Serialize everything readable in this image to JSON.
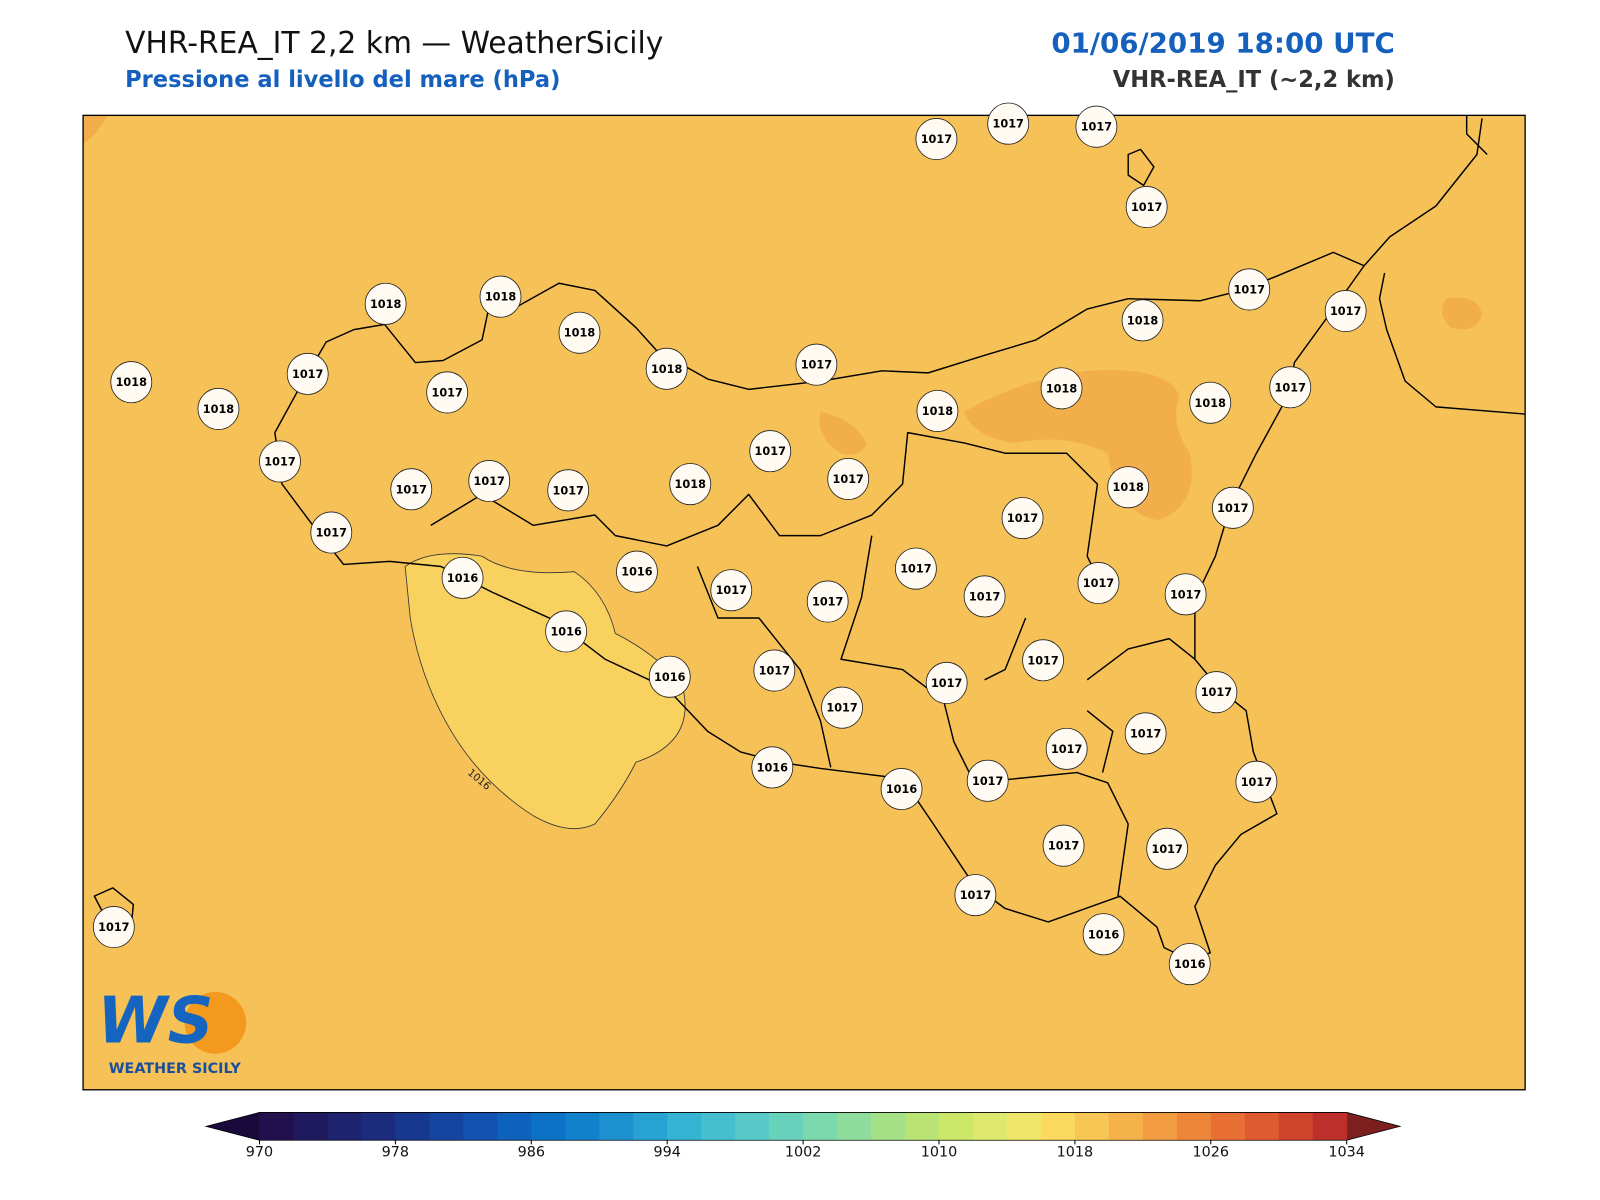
{
  "header": {
    "title": "VHR-REA_IT 2,2 km — WeatherSicily",
    "subtitle": "Pressione al livello del mare (hPa)",
    "datetime": "01/06/2019 18:00 UTC",
    "model": "VHR-REA_IT (~2,2 km)"
  },
  "map": {
    "background_color": "#f6c157",
    "stations": [
      1017,
      1017,
      1017,
      1017,
      1018,
      1018,
      1018,
      1018,
      1017,
      1018,
      1017,
      1017,
      1018,
      1018,
      1017,
      1017,
      1018,
      1018,
      1018,
      1017,
      1017,
      1017,
      1017,
      1017,
      1018,
      1017,
      1017,
      1017,
      1018,
      1017,
      1017,
      1016,
      1016,
      1017,
      1017,
      1017,
      1017,
      1017,
      1017,
      1016,
      1016,
      1017,
      1017,
      1017,
      1017,
      1017,
      1017,
      1017,
      1017,
      1016,
      1016,
      1017,
      1017,
      1017,
      1017,
      1016,
      1016,
      1017
    ],
    "contour": {
      "value": 1016,
      "label": "1016",
      "color": "#f9d15f"
    },
    "colorbar": {
      "bins": [
        970,
        972,
        974,
        976,
        978,
        980,
        982,
        984,
        986,
        988,
        990,
        992,
        994,
        996,
        998,
        1000,
        1002,
        1004,
        1006,
        1008,
        1010,
        1012,
        1014,
        1016,
        1018,
        1020,
        1022,
        1024,
        1026,
        1028,
        1030,
        1032,
        1034
      ],
      "colors": [
        "#23104f",
        "#1f1a5e",
        "#1d236e",
        "#1b2c7e",
        "#17388f",
        "#1445a0",
        "#1252b0",
        "#0e62bd",
        "#0b72c7",
        "#1281cc",
        "#1d91d0",
        "#27a2d2",
        "#35b3d2",
        "#45bfcf",
        "#57c9c7",
        "#69d2bd",
        "#7bd9ae",
        "#8fdd9c",
        "#a4e187",
        "#b9e474",
        "#cce668",
        "#dde86c",
        "#f0e66a",
        "#fbd95f",
        "#f8c654",
        "#f5b24a",
        "#f29c42",
        "#ee863a",
        "#e87034",
        "#df5a2f",
        "#d0432c",
        "#bd2f2a"
      ],
      "extend_colors": [
        "#1a0a3c",
        "#7e1f1f"
      ],
      "ticks": [
        970,
        978,
        986,
        994,
        1002,
        1010,
        1018,
        1026,
        1034
      ]
    }
  },
  "logo": {
    "mark": "WS",
    "text": "WEATHER SICILY"
  }
}
